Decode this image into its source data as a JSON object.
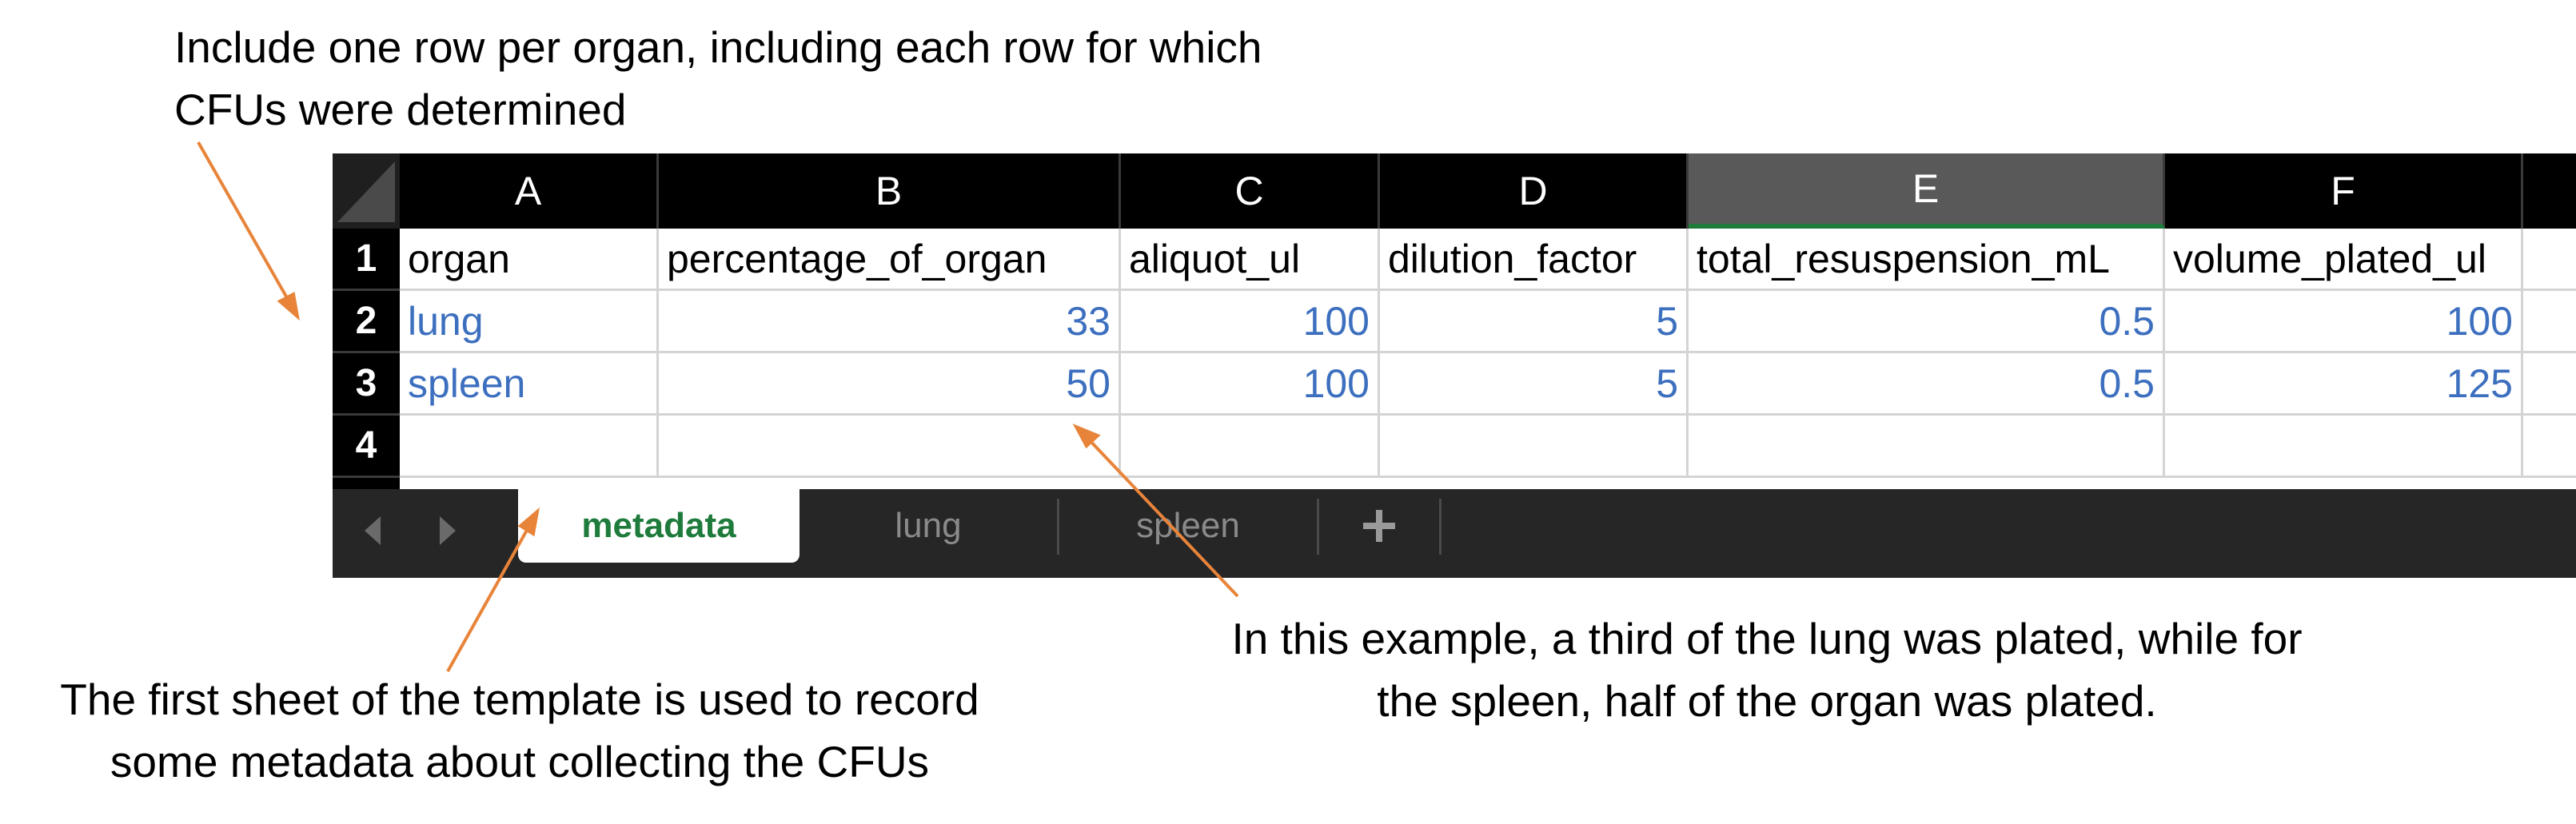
{
  "annotations": {
    "top_line1": "Include one row per organ, including each row for which",
    "top_line2": "CFUs were determined",
    "bottom_left_line1": "The first sheet of the template is used to record",
    "bottom_left_line2": "some metadata about collecting the CFUs",
    "bottom_right_line1": "In this example, a third of the lung was plated, while for",
    "bottom_right_line2": "the spleen, half of the organ was plated."
  },
  "sheet": {
    "columns": [
      "A",
      "B",
      "C",
      "D",
      "E",
      "F"
    ],
    "selected_column": "E",
    "rows": [
      "1",
      "2",
      "3",
      "4"
    ],
    "header_row": [
      "organ",
      "percentage_of_organ",
      "aliquot_ul",
      "dilution_factor",
      "total_resuspension_mL",
      "volume_plated_ul"
    ],
    "data_rows": [
      [
        "lung",
        "33",
        "100",
        "5",
        "0.5",
        "100"
      ],
      [
        "spleen",
        "50",
        "100",
        "5",
        "0.5",
        "125"
      ]
    ]
  },
  "tabs": {
    "items": [
      "metadata",
      "lung",
      "spleen"
    ],
    "active": "metadata",
    "add_icon": "plus-icon",
    "prev_icon": "chevron-left-icon",
    "next_icon": "chevron-right-icon"
  },
  "colors": {
    "accent_green": "#1e7b3b",
    "value_blue": "#3d6fbf",
    "arrow_orange": "#e8843a",
    "header_black": "#000000"
  }
}
